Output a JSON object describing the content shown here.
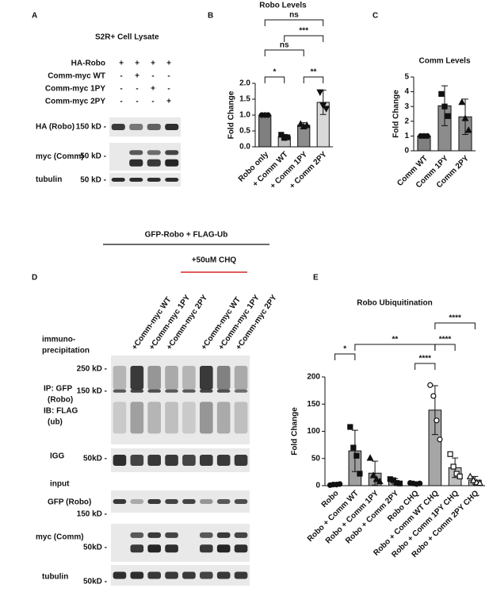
{
  "panels": {
    "a": "A",
    "b": "B",
    "c": "C",
    "d": "D",
    "e": "E"
  },
  "panel_a": {
    "title": "S2R+  Cell Lysate",
    "conditions": [
      {
        "label": "HA-Robo",
        "marks": [
          "+",
          "+",
          "+",
          "+"
        ]
      },
      {
        "label": "Comm-myc WT",
        "marks": [
          "-",
          "+",
          "-",
          "-"
        ]
      },
      {
        "label": "Comm-myc 1PY",
        "marks": [
          "-",
          "-",
          "+",
          "-"
        ]
      },
      {
        "label": "Comm-myc 2PY",
        "marks": [
          "-",
          "-",
          "-",
          "+"
        ]
      }
    ],
    "blots": [
      {
        "label": "HA (Robo)",
        "size": "150 kD -"
      },
      {
        "label": "myc (Comm)",
        "size": "50 kD -"
      },
      {
        "label": "tubulin",
        "size": "50 kD -"
      }
    ]
  },
  "panel_d": {
    "treatment": "GFP-Robo + FLAG-Ub",
    "drug": "+50uM CHQ",
    "lanes": [
      "+Comm-myc WT",
      "+Comm-myc 1PY",
      "+Comm-myc 2PY",
      "+Comm-myc WT",
      "+Comm-myc 1PY",
      "+Comm-myc 2PY"
    ],
    "section_ip": [
      "immuno-",
      "precipitation"
    ],
    "section_input": "input",
    "blots": [
      {
        "label": [
          "IP: GFP",
          "(Robo)",
          "IB: FLAG",
          "(ub)"
        ],
        "sizes": [
          "250 kD -",
          "150 kD -"
        ]
      },
      {
        "label": [
          "IGG"
        ],
        "sizes": [
          "50kD -"
        ]
      },
      {
        "label": [
          "GFP (Robo)"
        ],
        "sizes": [
          "150 kD -"
        ]
      },
      {
        "label": [
          "myc (Comm)"
        ],
        "sizes": [
          "50kD -"
        ]
      },
      {
        "label": [
          "tubulin"
        ],
        "sizes": [
          "50kD -"
        ]
      }
    ]
  },
  "chart_data": [
    {
      "type": "bar",
      "title": "Robo Levels",
      "ylabel": "Fold Change",
      "categories": [
        "Robo only",
        "+ Comm WT",
        "+ Comm 1PY",
        "+ Comm 2PY"
      ],
      "values": [
        1.0,
        0.32,
        0.68,
        1.4
      ],
      "errors": [
        0,
        0.07,
        0.08,
        0.38
      ],
      "points": [
        [
          1,
          1,
          1
        ],
        [
          0.38,
          0.28,
          0.3
        ],
        [
          0.72,
          0.64,
          0.68
        ],
        [
          1.72,
          1.3,
          1.2
        ]
      ],
      "colors": [
        "#7f7f7f",
        "#bdbdbd",
        "#8c8c8c",
        "#d9d9d9"
      ],
      "ylim": [
        0,
        2
      ],
      "yticks": [
        {
          "value": 0,
          "label": "0.0"
        },
        0.5,
        {
          "value": 1,
          "label": "1.0"
        },
        1.5,
        {
          "value": 2,
          "label": "2.0"
        }
      ],
      "comparisons": [
        {
          "label": "*",
          "pair": [
            0,
            1
          ]
        },
        {
          "label": "**",
          "pair": [
            2,
            3
          ]
        },
        {
          "label": "ns",
          "pair": [
            0,
            2
          ]
        },
        {
          "label": "***",
          "pair": [
            1,
            3
          ]
        },
        {
          "label": "ns",
          "pair": [
            0,
            3
          ]
        }
      ]
    },
    {
      "type": "bar",
      "title": "Comm Levels",
      "ylabel": "Fold Change",
      "categories": [
        "Comm WT",
        "Comm 1PY",
        "Comm 2PY"
      ],
      "values": [
        1.0,
        3.05,
        2.3
      ],
      "errors": [
        0,
        1.35,
        1.2
      ],
      "points": [
        [
          1,
          1,
          1
        ],
        [
          3.85,
          3.0,
          2.35
        ],
        [
          3.3,
          2.2,
          1.4
        ]
      ],
      "colors": [
        "#7f7f7f",
        "#8c8c8c",
        "#8c8c8c"
      ],
      "ylim": [
        0,
        5
      ],
      "yticks": [
        0,
        1,
        2,
        3,
        4,
        5
      ],
      "comparisons": []
    },
    {
      "type": "bar",
      "title": "Robo Ubiquitination",
      "ylabel": "Fold Change",
      "categories": [
        "Robo",
        "Robo + Comm WT",
        "Robo + Comm 1PY",
        "Robo + Comm 2PY",
        "Robo CHQ",
        "Robo + Comm WT CHQ",
        "Robo + Comm 1PY CHQ",
        "Robo + Comm 2PY CHQ"
      ],
      "values": [
        2,
        64,
        23,
        8,
        4,
        139,
        33,
        10
      ],
      "errors": [
        1,
        38,
        22,
        5,
        1,
        45,
        18,
        7
      ],
      "points": [
        [
          1,
          2,
          2,
          3
        ],
        [
          108,
          70,
          55,
          22
        ],
        [
          51,
          19,
          12,
          8
        ],
        [
          12,
          10,
          5,
          4
        ],
        [
          5,
          4,
          3,
          4
        ],
        [
          185,
          165,
          120,
          85
        ],
        [
          58,
          35,
          22,
          17
        ],
        [
          17,
          10,
          6,
          5
        ]
      ],
      "colors": [
        "#9e9e9e",
        "#9e9e9e",
        "#9e9e9e",
        "#9e9e9e",
        "#9e9e9e",
        "#a6a6a6",
        "#bdbdbd",
        "#bdbdbd"
      ],
      "ylim": [
        0,
        200
      ],
      "yticks": [
        0,
        50,
        100,
        150,
        200
      ],
      "comparisons": [
        {
          "label": "*",
          "pair": [
            0,
            1
          ]
        },
        {
          "label": "**",
          "pair": [
            1,
            5
          ]
        },
        {
          "label": "****",
          "pair": [
            4,
            5
          ]
        },
        {
          "label": "****",
          "pair": [
            5,
            6
          ]
        },
        {
          "label": "****",
          "pair": [
            5,
            7
          ]
        }
      ]
    }
  ]
}
